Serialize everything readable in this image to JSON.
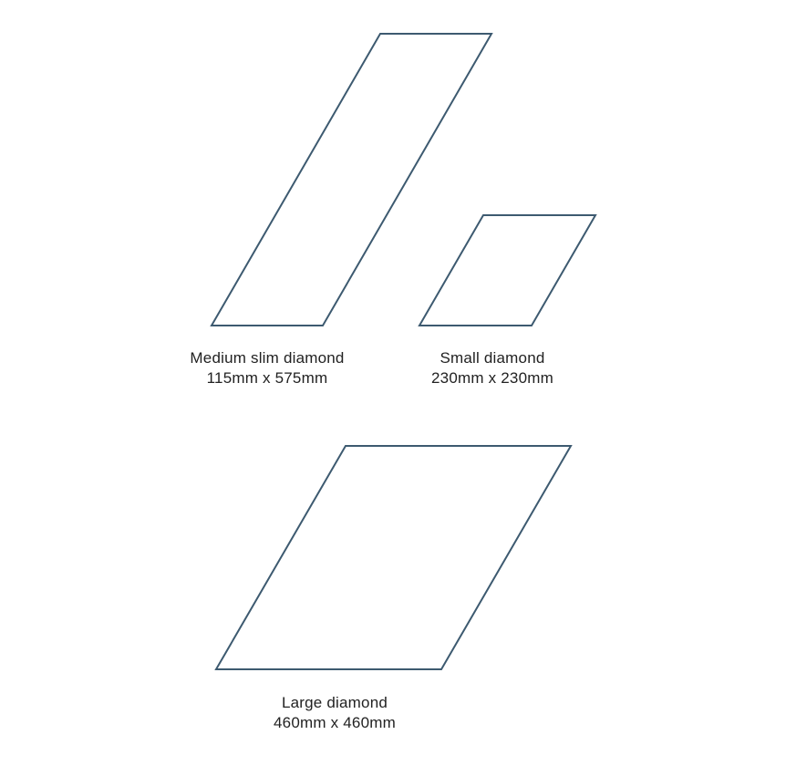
{
  "colors": {
    "outline": "#3d5a70",
    "text": "#222222",
    "background": "#ffffff"
  },
  "tiles": [
    {
      "id": "medium-slim",
      "name": "Medium slim diamond",
      "size": "115mm x 575mm"
    },
    {
      "id": "small",
      "name": "Small diamond",
      "size": "230mm x 230mm"
    },
    {
      "id": "large",
      "name": "Large diamond",
      "size": "460mm x 460mm"
    }
  ]
}
